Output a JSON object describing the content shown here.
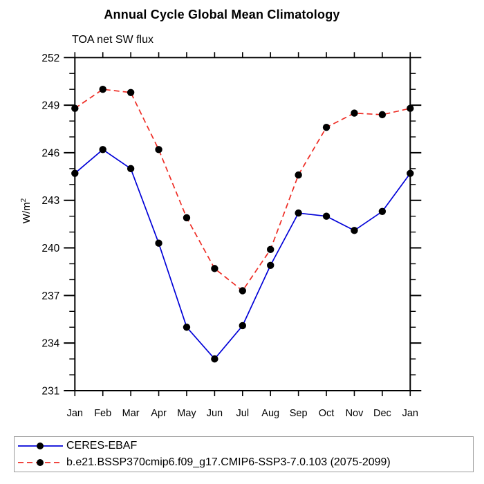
{
  "chart_data": {
    "type": "line",
    "title": "Annual Cycle Global Mean Climatology",
    "subtitle": "TOA net SW flux",
    "ylabel": "W/m²",
    "ylabel_base": "W/m",
    "ylabel_sup": "2",
    "ylim": [
      231,
      252
    ],
    "y_major_every": 3,
    "y_minor_every": 1,
    "y_tick_labels": [
      "231",
      "234",
      "237",
      "240",
      "243",
      "246",
      "249",
      "252"
    ],
    "x_categories": [
      "Jan",
      "Feb",
      "Mar",
      "Apr",
      "May",
      "Jun",
      "Jul",
      "Aug",
      "Sep",
      "Oct",
      "Nov",
      "Dec",
      "Jan"
    ],
    "grid": false,
    "legend_position": "bottom-left-box",
    "marker": "filled-circle",
    "marker_color": "#000000",
    "axis_color": "#000000",
    "series": [
      {
        "name": "CERES-EBAF",
        "color": "#0000d8",
        "line_style": "solid",
        "values": [
          244.7,
          246.2,
          245.0,
          240.3,
          235.0,
          233.0,
          235.1,
          238.9,
          242.2,
          242.0,
          241.1,
          242.3,
          244.7
        ]
      },
      {
        "name": "b.e21.BSSP370cmip6.f09_g17.CMIP6-SSP3-7.0.103 (2075-2099)",
        "color": "#ee2c24",
        "line_style": "dashed",
        "values": [
          248.8,
          250.0,
          249.8,
          246.2,
          241.9,
          238.7,
          237.3,
          239.9,
          244.6,
          247.6,
          248.5,
          248.4,
          248.8
        ]
      }
    ]
  }
}
